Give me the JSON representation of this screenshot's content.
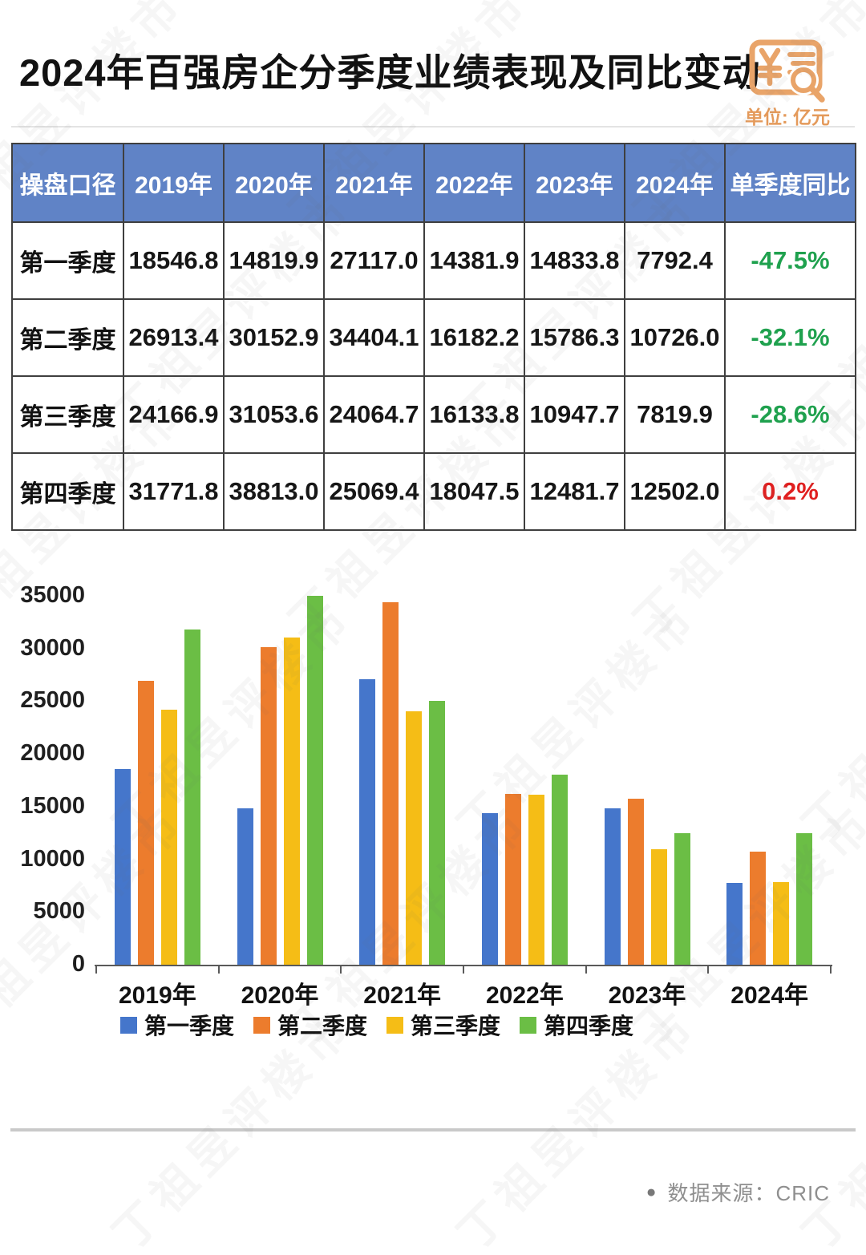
{
  "header": {
    "title": "2024年百强房企分季度业绩表现及同比变动",
    "unit_label": "单位: 亿元",
    "icon": "receipt-yuan-magnifier-icon"
  },
  "table": {
    "columns": [
      "操盘口径",
      "2019年",
      "2020年",
      "2021年",
      "2022年",
      "2023年",
      "2024年",
      "单季度同比"
    ],
    "rows": [
      {
        "label": "第一季度",
        "values": [
          "18546.8",
          "14819.9",
          "27117.0",
          "14381.9",
          "14833.8",
          "7792.4"
        ],
        "yoy": "-47.5%",
        "yoy_color": "#1FA14E"
      },
      {
        "label": "第二季度",
        "values": [
          "26913.4",
          "30152.9",
          "34404.1",
          "16182.2",
          "15786.3",
          "10726.0"
        ],
        "yoy": "-32.1%",
        "yoy_color": "#1FA14E"
      },
      {
        "label": "第三季度",
        "values": [
          "24166.9",
          "31053.6",
          "24064.7",
          "16133.8",
          "10947.7",
          "7819.9"
        ],
        "yoy": "-28.6%",
        "yoy_color": "#1FA14E"
      },
      {
        "label": "第四季度",
        "values": [
          "31771.8",
          "38813.0",
          "25069.4",
          "18047.5",
          "12481.7",
          "12502.0"
        ],
        "yoy": "0.2%",
        "yoy_color": "#E01F1F"
      }
    ]
  },
  "chart_data": {
    "type": "bar",
    "categories": [
      "2019年",
      "2020年",
      "2021年",
      "2022年",
      "2023年",
      "2024年"
    ],
    "series": [
      {
        "name": "第一季度",
        "color": "#4576CB",
        "values": [
          18546.8,
          14819.9,
          27117.0,
          14381.9,
          14833.8,
          7792.4
        ]
      },
      {
        "name": "第二季度",
        "color": "#EC7C2D",
        "values": [
          26913.4,
          30152.9,
          34404.1,
          16182.2,
          15786.3,
          10726.0
        ]
      },
      {
        "name": "第三季度",
        "color": "#F5BD16",
        "values": [
          24166.9,
          31053.6,
          24064.7,
          16133.8,
          10947.7,
          7819.9
        ]
      },
      {
        "name": "第四季度",
        "color": "#6BBE45",
        "values": [
          31771.8,
          38813.0,
          25069.4,
          18047.5,
          12481.7,
          12502.0
        ]
      }
    ],
    "title": "",
    "xlabel": "",
    "ylabel": "",
    "ylim": [
      0,
      35000
    ],
    "ytick_step": 5000,
    "grid": false,
    "legend_position": "bottom",
    "bars_clipped_at_ymax": true
  },
  "footer": {
    "bullet": "●",
    "source_text": "数据来源：CRIC"
  },
  "watermark": {
    "text": "丁祖昱评楼市"
  },
  "colors": {
    "header_blue": "#6083C6",
    "table_border": "#3f3f3f",
    "accent_orange": "#E9A469",
    "yoy_down_green": "#1FA14E",
    "yoy_up_red": "#E01F1F",
    "axis_gray": "#5a5a5a",
    "source_gray": "#8f8f8f"
  }
}
